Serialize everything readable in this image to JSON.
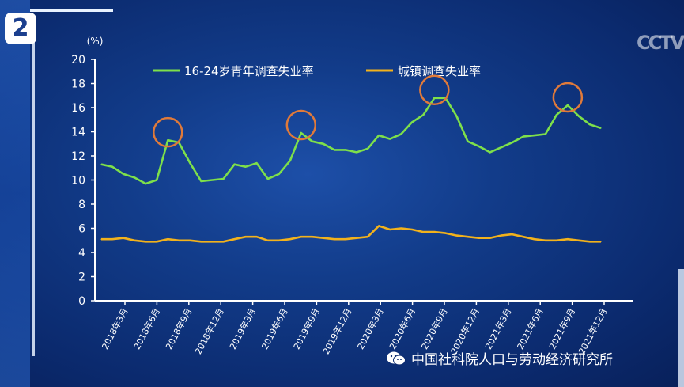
{
  "badge_number": "2",
  "watermark": "中国社科院人口与劳动经济研究所",
  "colors": {
    "youth": "#7ee04a",
    "urban": "#f2b21c",
    "circle": "#e07a3a",
    "axis": "#ffffff"
  },
  "chart_data": {
    "type": "line",
    "ylabel": "(%)",
    "ylim": [
      0,
      20
    ],
    "yticks": [
      "0",
      "2",
      "4",
      "6",
      "8",
      "10",
      "12",
      "14",
      "16",
      "18",
      "20"
    ],
    "xtick_labels": [
      "2018年3月",
      "2018年6月",
      "2018年9月",
      "2018年12月",
      "2019年3月",
      "2019年6月",
      "2019年9月",
      "2019年12月",
      "2020年3月",
      "2020年6月",
      "2020年9月",
      "2020年12月",
      "2021年3月",
      "2021年6月",
      "2021年9月",
      "2021年12月"
    ],
    "x_months": 46,
    "legend": [
      "16-24岁青年调查失业率",
      "城镇调查失业率"
    ],
    "legend_position": "top",
    "series": [
      {
        "name": "16-24岁青年调查失业率",
        "values": [
          11.3,
          11.1,
          10.5,
          10.2,
          9.7,
          10.0,
          13.3,
          13.1,
          11.4,
          9.9,
          10.0,
          10.1,
          11.3,
          11.1,
          11.4,
          10.1,
          10.5,
          11.6,
          13.9,
          13.2,
          13.0,
          12.5,
          12.5,
          12.3,
          12.6,
          13.7,
          13.4,
          13.8,
          14.8,
          15.4,
          16.8,
          16.8,
          15.3,
          13.2,
          12.8,
          12.3,
          12.7,
          13.1,
          13.6,
          13.7,
          13.8,
          15.4,
          16.2,
          15.3,
          14.6,
          14.3
        ]
      },
      {
        "name": "城镇调查失业率",
        "values": [
          5.1,
          5.1,
          5.2,
          5.0,
          4.9,
          4.9,
          5.1,
          5.0,
          5.0,
          4.9,
          4.9,
          4.9,
          5.1,
          5.3,
          5.3,
          5.0,
          5.0,
          5.1,
          5.3,
          5.3,
          5.2,
          5.1,
          5.1,
          5.2,
          5.3,
          6.2,
          5.9,
          6.0,
          5.9,
          5.7,
          5.7,
          5.6,
          5.4,
          5.3,
          5.2,
          5.2,
          5.4,
          5.5,
          5.3,
          5.1,
          5.0,
          5.0,
          5.1,
          5.0,
          4.9,
          4.9
        ]
      }
    ],
    "highlights": [
      6,
      18,
      30,
      42
    ]
  }
}
